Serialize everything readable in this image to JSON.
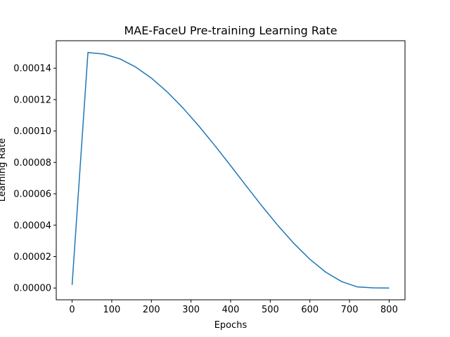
{
  "chart_data": {
    "type": "line",
    "title": "MAE-FaceU Pre-training Learning Rate",
    "xlabel": "Epochs",
    "ylabel": "Learning Rate",
    "xlim": [
      -40,
      840
    ],
    "ylim": [
      -7.5e-06,
      0.0001575
    ],
    "grid": false,
    "legend": "none",
    "x_ticks": [
      0,
      100,
      200,
      300,
      400,
      500,
      600,
      700,
      800
    ],
    "x_tick_labels": [
      "0",
      "100",
      "200",
      "300",
      "400",
      "500",
      "600",
      "700",
      "800"
    ],
    "y_ticks": [
      0,
      2e-05,
      4e-05,
      6e-05,
      8e-05,
      0.0001,
      0.00012,
      0.00014
    ],
    "y_tick_labels": [
      "0.00000",
      "0.00002",
      "0.00004",
      "0.00006",
      "0.00008",
      "0.00010",
      "0.00012",
      "0.00014"
    ],
    "series": [
      {
        "color": "#1f77b4",
        "x": [
          0,
          40,
          80,
          120,
          160,
          200,
          240,
          280,
          320,
          360,
          400,
          440,
          480,
          520,
          560,
          600,
          640,
          680,
          720,
          760,
          800
        ],
        "y": [
          2e-06,
          0.00015,
          0.000149,
          0.000146,
          0.0001408,
          0.0001337,
          0.0001249,
          0.0001146,
          0.0001031,
          9.08e-05,
          7.79e-05,
          6.48e-05,
          5.19e-05,
          3.96e-05,
          2.83e-05,
          1.83e-05,
          1.01e-05,
          4.1e-06,
          7e-07,
          1e-07,
          0.0
        ]
      }
    ]
  }
}
